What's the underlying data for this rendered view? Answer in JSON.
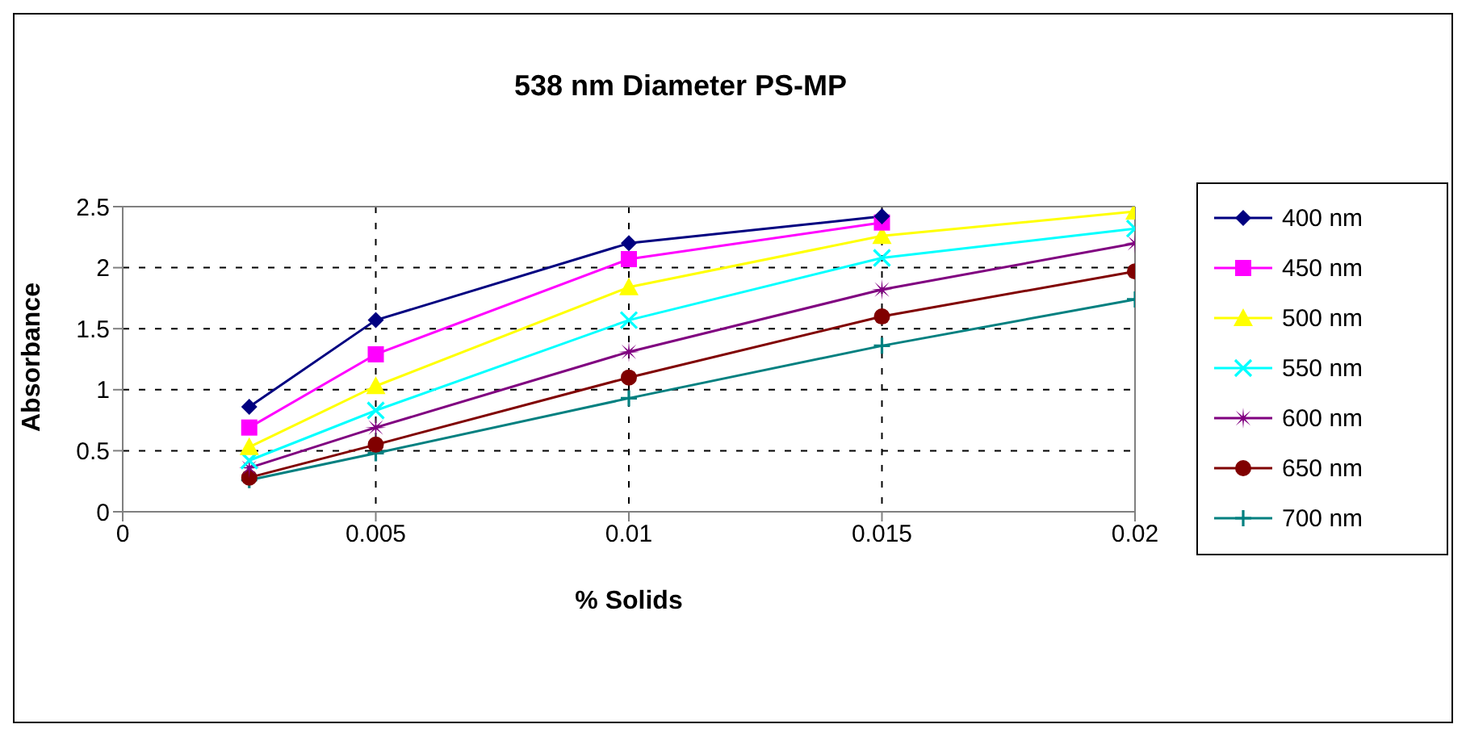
{
  "chart_data": {
    "type": "line",
    "title": "538 nm Diameter PS-MP",
    "xlabel": "% Solids",
    "ylabel": "Absorbance",
    "x": [
      0.0025,
      0.005,
      0.01,
      0.015,
      0.02
    ],
    "series": [
      {
        "name": "400 nm",
        "color": "#000080",
        "marker": "diamond",
        "values": [
          0.86,
          1.57,
          2.2,
          2.42,
          null
        ]
      },
      {
        "name": "450 nm",
        "color": "#ff00ff",
        "marker": "square",
        "values": [
          0.69,
          1.29,
          2.07,
          2.37,
          null
        ]
      },
      {
        "name": "500 nm",
        "color": "#ffff00",
        "marker": "triangle",
        "values": [
          0.53,
          1.03,
          1.84,
          2.26,
          2.46
        ]
      },
      {
        "name": "550 nm",
        "color": "#00ffff",
        "marker": "cross",
        "values": [
          0.42,
          0.83,
          1.57,
          2.08,
          2.32
        ]
      },
      {
        "name": "600 nm",
        "color": "#800080",
        "marker": "star",
        "values": [
          0.36,
          0.69,
          1.31,
          1.82,
          2.2
        ]
      },
      {
        "name": "650 nm",
        "color": "#800000",
        "marker": "circle",
        "values": [
          0.28,
          0.55,
          1.1,
          1.6,
          1.97
        ]
      },
      {
        "name": "700 nm",
        "color": "#008080",
        "marker": "plus",
        "values": [
          0.26,
          0.48,
          0.93,
          1.36,
          1.74
        ]
      }
    ],
    "xlim": [
      0,
      0.02
    ],
    "xticks": [
      0,
      0.005,
      0.01,
      0.015,
      0.02
    ],
    "ylim": [
      0,
      2.5
    ],
    "yticks": [
      0,
      0.5,
      1,
      1.5,
      2,
      2.5
    ],
    "grid": true,
    "legend": "right",
    "line_style": "solid"
  }
}
